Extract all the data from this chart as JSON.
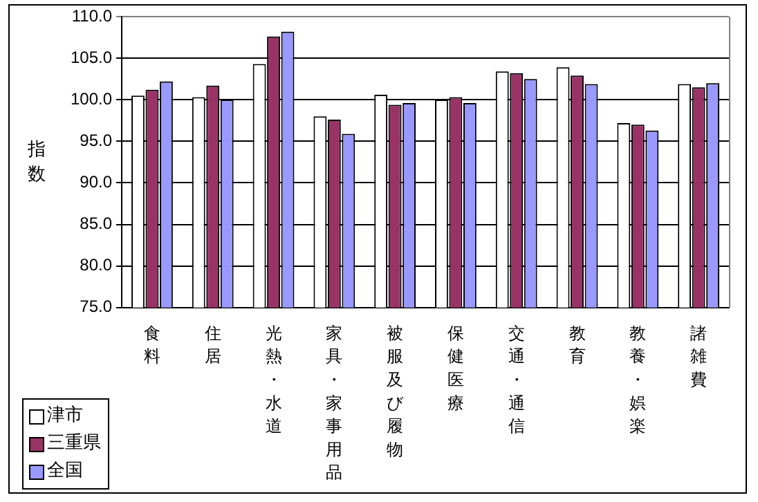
{
  "chart_data": {
    "type": "bar",
    "ylabel": "指数",
    "categories": [
      "食料",
      "住居",
      "光熱・水道",
      "家具・家事用品",
      "被服及び履物",
      "保健医療",
      "交通・通信",
      "教育",
      "教養・娯楽",
      "諸雑費"
    ],
    "series": [
      {
        "name": "津市",
        "color": "#ffffff",
        "values": [
          100.5,
          100.3,
          104.3,
          98.0,
          100.6,
          100.0,
          103.4,
          103.9,
          97.2,
          101.9
        ]
      },
      {
        "name": "三重県",
        "color": "#993366",
        "values": [
          101.2,
          101.7,
          107.6,
          97.6,
          99.4,
          100.3,
          103.2,
          102.9,
          97.0,
          101.5
        ]
      },
      {
        "name": "全国",
        "color": "#9999ff",
        "values": [
          102.2,
          100.0,
          108.2,
          95.9,
          99.6,
          99.6,
          102.5,
          101.9,
          96.3,
          102.0
        ]
      }
    ],
    "ylim": [
      75,
      110
    ],
    "yticks": [
      {
        "value": 75,
        "label": "75.0"
      },
      {
        "value": 80,
        "label": "80.0"
      },
      {
        "value": 85,
        "label": "85.0"
      },
      {
        "value": 90,
        "label": "90.0"
      },
      {
        "value": 95,
        "label": "95.0"
      },
      {
        "value": 100,
        "label": "100.0"
      },
      {
        "value": 105,
        "label": "105.0"
      },
      {
        "value": 110,
        "label": "110.0"
      }
    ],
    "grid": "y",
    "legend": "bottom left"
  }
}
